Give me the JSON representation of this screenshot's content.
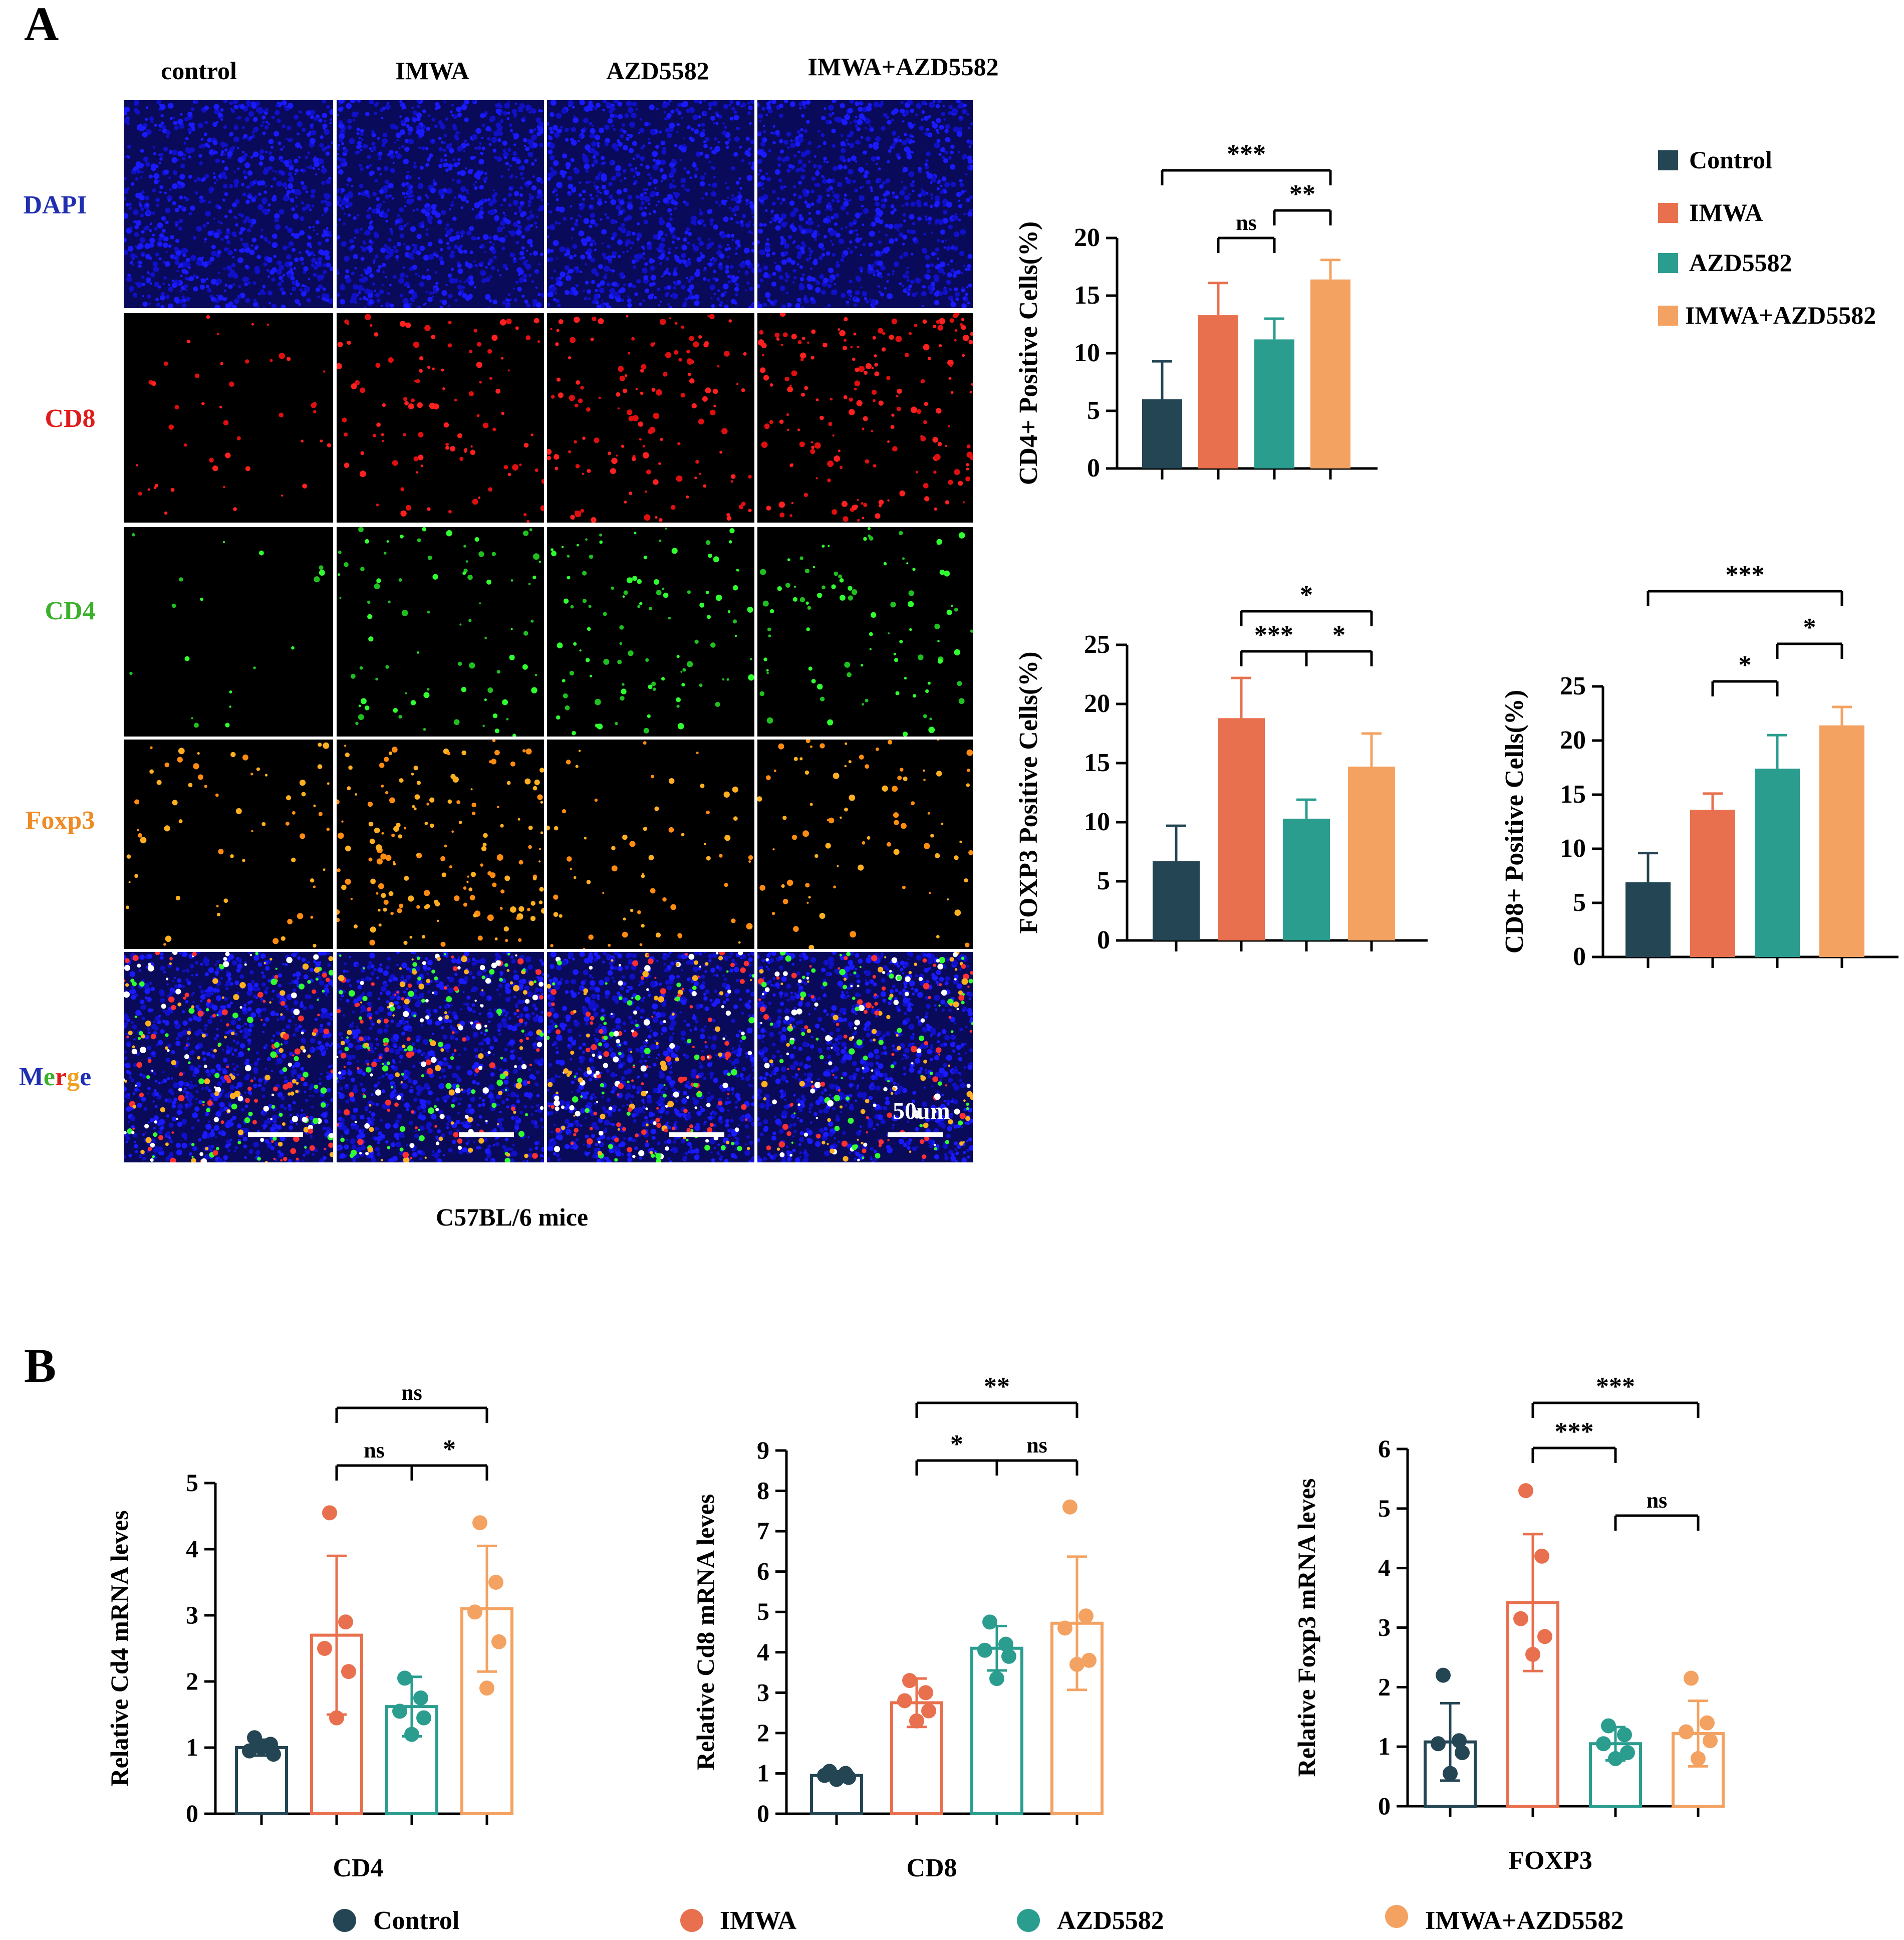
{
  "panel_labels": {
    "a": "A",
    "b": "B"
  },
  "micrographs": {
    "columns": [
      "control",
      "IMWA",
      "AZD5582",
      "IMWA+AZD5582"
    ],
    "rows": [
      {
        "label": "DAPI",
        "color": "#1f2fb0"
      },
      {
        "label": "CD8",
        "color": "#e01a1a"
      },
      {
        "label": "CD4",
        "color": "#3cb02c"
      },
      {
        "label": "Foxp3",
        "color": "#f08a24"
      },
      {
        "label": "Merge",
        "color": "multi"
      }
    ],
    "merge_letters": [
      {
        "ch": "M",
        "color": "#1f2fb0"
      },
      {
        "ch": "e",
        "color": "#3cb02c"
      },
      {
        "ch": "r",
        "color": "#e01a1a"
      },
      {
        "ch": "g",
        "color": "#f0a020"
      },
      {
        "ch": "e",
        "color": "#1f2fb0"
      }
    ],
    "scale_bar_label": "50um",
    "caption": "C57BL/6 mice"
  },
  "legend_a": [
    "Control",
    "IMWA",
    "AZD5582",
    "IMWA+AZD5582"
  ],
  "legend_b": [
    "Control",
    "IMWA",
    "AZD5582",
    "IMWA+AZD5582"
  ],
  "colors": {
    "Control": "#244553",
    "IMWA": "#e8704e",
    "AZD5582": "#2a9d8f",
    "IMWA+AZD5582": "#f4a261"
  },
  "chart_data": [
    {
      "id": "cd4_pos",
      "type": "bar",
      "ylabel": "CD4+ Positive Cells(%)",
      "xlabel": "",
      "categories": [
        "Control",
        "IMWA",
        "AZD5582",
        "IMWA+AZD5582"
      ],
      "values": [
        6,
        13.3,
        11.2,
        16.4
      ],
      "errors": [
        3.3,
        2.8,
        1.8,
        1.7
      ],
      "ylim": [
        0,
        20
      ],
      "yticks": [
        0,
        5,
        10,
        15,
        20
      ],
      "significance": [
        {
          "from": 0,
          "to": 3,
          "label": "***"
        },
        {
          "from": 1,
          "to": 2,
          "label": "ns"
        },
        {
          "from": 2,
          "to": 3,
          "label": "**"
        }
      ]
    },
    {
      "id": "foxp3_pos",
      "type": "bar",
      "ylabel": "FOXP3 Positive Cells(%)",
      "xlabel": "",
      "categories": [
        "Control",
        "IMWA",
        "AZD5582",
        "IMWA+AZD5582"
      ],
      "values": [
        6.7,
        18.8,
        10.3,
        14.7
      ],
      "errors": [
        3.0,
        3.4,
        1.6,
        2.8
      ],
      "ylim": [
        0,
        25
      ],
      "yticks": [
        0,
        5,
        10,
        15,
        20,
        25
      ],
      "significance": [
        {
          "from": 1,
          "to": 3,
          "label": "*"
        },
        {
          "from": 1,
          "to": 2,
          "label": "***"
        },
        {
          "from": 2,
          "to": 3,
          "label": "*"
        }
      ]
    },
    {
      "id": "cd8_pos",
      "type": "bar",
      "ylabel": "CD8+ Positive Cells(%)",
      "xlabel": "",
      "categories": [
        "Control",
        "IMWA",
        "AZD5582",
        "IMWA+AZD5582"
      ],
      "values": [
        6.9,
        13.6,
        17.4,
        21.4
      ],
      "errors": [
        2.7,
        1.5,
        3.1,
        1.7
      ],
      "ylim": [
        0,
        25
      ],
      "yticks": [
        0,
        5,
        10,
        15,
        20,
        25
      ],
      "significance": [
        {
          "from": 0,
          "to": 3,
          "label": "***"
        },
        {
          "from": 1,
          "to": 2,
          "label": "*"
        },
        {
          "from": 2,
          "to": 3,
          "label": "*"
        }
      ]
    },
    {
      "id": "cd4_mrna",
      "type": "bar",
      "ylabel": "Relative Cd4  mRNA leves",
      "xlabel": "CD4",
      "categories": [
        "Control",
        "IMWA",
        "AZD5582",
        "IMWA+AZD5582"
      ],
      "values": [
        1.0,
        2.7,
        1.62,
        3.1
      ],
      "errors": [
        0.12,
        1.2,
        0.45,
        0.95
      ],
      "points": [
        [
          1.15,
          1.05,
          0.95,
          0.9,
          1.0
        ],
        [
          4.55,
          2.9,
          2.5,
          2.15,
          1.45
        ],
        [
          2.05,
          1.75,
          1.55,
          1.45,
          1.2
        ],
        [
          4.4,
          3.5,
          3.05,
          2.6,
          1.9
        ]
      ],
      "ylim": [
        0,
        5
      ],
      "yticks": [
        0,
        1,
        2,
        3,
        4,
        5
      ],
      "significance": [
        {
          "from": 1,
          "to": 3,
          "label": "ns"
        },
        {
          "from": 1,
          "to": 2,
          "label": "ns"
        },
        {
          "from": 2,
          "to": 3,
          "label": "*"
        }
      ]
    },
    {
      "id": "cd8_mrna",
      "type": "bar",
      "ylabel": "Relative Cd8  mRNA leves",
      "xlabel": "CD8",
      "categories": [
        "Control",
        "IMWA",
        "AZD5582",
        "IMWA+AZD5582"
      ],
      "values": [
        0.95,
        2.75,
        4.1,
        4.72
      ],
      "errors": [
        0.1,
        0.6,
        0.55,
        1.65
      ],
      "points": [
        [
          1.05,
          1.0,
          0.95,
          0.9,
          0.85
        ],
        [
          3.3,
          3.0,
          2.8,
          2.55,
          2.3
        ],
        [
          4.75,
          4.2,
          4.05,
          3.9,
          3.35
        ],
        [
          7.6,
          4.9,
          4.6,
          3.8,
          3.7
        ]
      ],
      "ylim": [
        0,
        9
      ],
      "yticks": [
        0,
        1,
        2,
        3,
        4,
        5,
        6,
        7,
        8,
        9
      ],
      "significance": [
        {
          "from": 1,
          "to": 3,
          "label": "**"
        },
        {
          "from": 1,
          "to": 2,
          "label": "*"
        },
        {
          "from": 2,
          "to": 3,
          "label": "ns"
        }
      ]
    },
    {
      "id": "foxp3_mrna",
      "type": "bar",
      "ylabel": "Relative Foxp3  mRNA leves",
      "xlabel": "FOXP3",
      "categories": [
        "Control",
        "IMWA",
        "AZD5582",
        "IMWA+AZD5582"
      ],
      "values": [
        1.08,
        3.42,
        1.05,
        1.22
      ],
      "errors": [
        0.65,
        1.15,
        0.28,
        0.55
      ],
      "points": [
        [
          2.2,
          1.1,
          1.05,
          0.9,
          0.55
        ],
        [
          5.3,
          4.2,
          3.15,
          2.85,
          2.55
        ],
        [
          1.35,
          1.2,
          1.05,
          0.9,
          0.8
        ],
        [
          2.15,
          1.4,
          1.25,
          1.1,
          0.8
        ]
      ],
      "ylim": [
        0,
        6
      ],
      "yticks": [
        0,
        1,
        2,
        3,
        4,
        5,
        6
      ],
      "significance": [
        {
          "from": 1,
          "to": 3,
          "label": "***"
        },
        {
          "from": 1,
          "to": 2,
          "label": "***"
        },
        {
          "from": 2,
          "to": 3,
          "label": "ns"
        }
      ]
    }
  ]
}
